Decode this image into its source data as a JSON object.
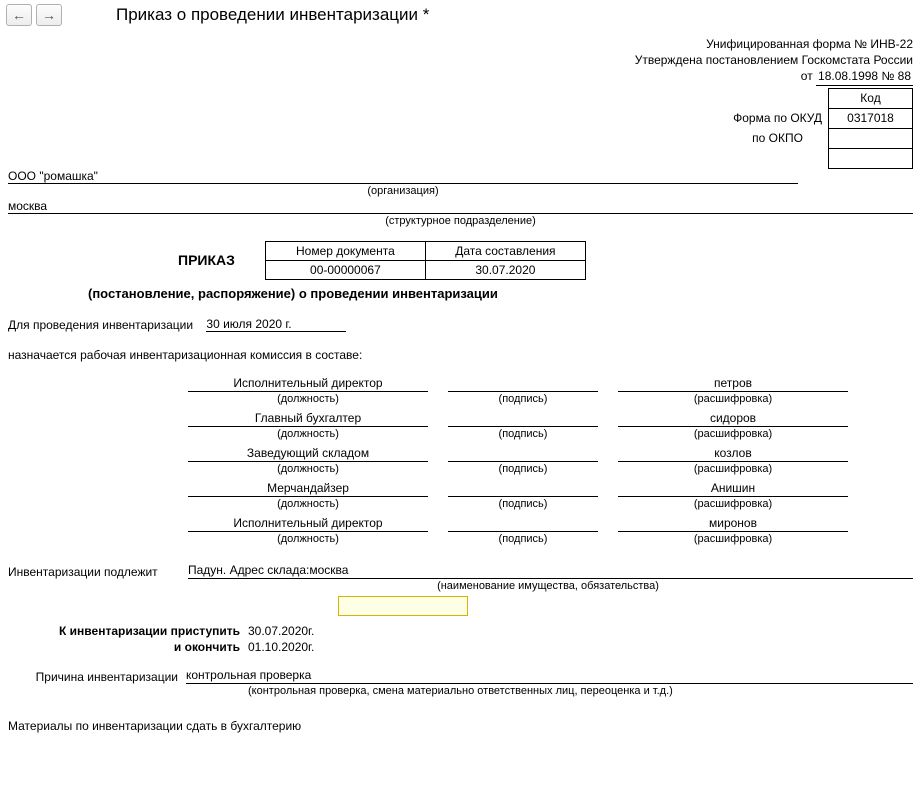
{
  "toolbar": {
    "title": "Приказ о проведении инвентаризации *"
  },
  "form_info": {
    "line1": "Унифицированная форма № ИНВ-22",
    "line2": "Утверждена постановлением Госкомстата России",
    "line3_prefix": "от ",
    "line3_value": "18.08.1998 № 88"
  },
  "codes": {
    "kod_header": "Код",
    "okud_label": "Форма по ОКУД",
    "okud_value": "0317018",
    "okpo_label": "по ОКПО",
    "okpo_value": ""
  },
  "org": {
    "name": "ООО \"ромашка\"",
    "caption": "(организация)",
    "division": "москва",
    "division_caption": "(структурное подразделение)"
  },
  "doc": {
    "prikaz": "ПРИКАЗ",
    "num_header": "Номер документа",
    "date_header": "Дата составления",
    "num_value": "00-00000067",
    "date_value": "30.07.2020",
    "subtitle": "(постановление, распоряжение) о проведении инвентаризации"
  },
  "conduct": {
    "label": "Для проведения инвентаризации",
    "date": "30 июля 2020 г."
  },
  "commission_label": "назначается рабочая инвентаризационная комиссия в составе:",
  "signature_captions": {
    "position": "(должность)",
    "signature": "(подпись)",
    "name": "(расшифровка)"
  },
  "commission": [
    {
      "position": "Исполнительный директор",
      "name": "петров"
    },
    {
      "position": "Главный бухгалтер",
      "name": "сидоров"
    },
    {
      "position": "Заведующий складом",
      "name": "козлов"
    },
    {
      "position": "Мерчандайзер",
      "name": "Анишин"
    },
    {
      "position": "Исполнительный директор",
      "name": "миронов"
    }
  ],
  "subject": {
    "label": "Инвентаризации подлежит",
    "value": "Падун. Адрес склада:москва",
    "caption": "(наименование имущества, обязательства)"
  },
  "dates": {
    "start_label": "К инвентаризации приступить",
    "start_value": "30.07.2020г.",
    "end_label": "и окончить",
    "end_value": "01.10.2020г."
  },
  "reason": {
    "label": "Причина инвентаризации",
    "value": "контрольная проверка",
    "caption": "(контрольная проверка, смена материально ответственных лиц, переоценка и т.д.)"
  },
  "footer": "Материалы по инвентаризации сдать в бухгалтерию"
}
